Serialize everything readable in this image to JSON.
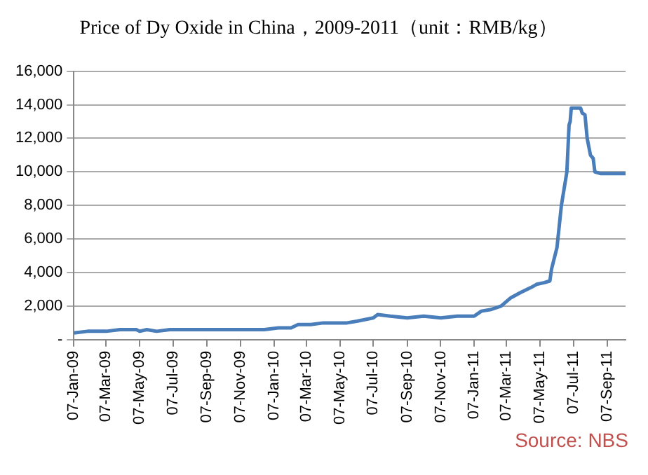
{
  "chart_data": {
    "type": "line",
    "title": "Price of Dy Oxide in China，2009-2011（unit：RMB/kg）",
    "x": [
      "2009-01-07",
      "2009-02-01",
      "2009-03-07",
      "2009-04-01",
      "2009-05-01",
      "2009-05-07",
      "2009-05-20",
      "2009-06-07",
      "2009-07-01",
      "2009-09-01",
      "2009-11-07",
      "2009-12-20",
      "2010-01-15",
      "2010-02-07",
      "2010-02-20",
      "2010-03-15",
      "2010-04-07",
      "2010-05-07",
      "2010-05-20",
      "2010-06-07",
      "2010-07-07",
      "2010-07-15",
      "2010-08-07",
      "2010-09-07",
      "2010-10-07",
      "2010-11-07",
      "2010-12-07",
      "2011-01-07",
      "2011-01-20",
      "2011-02-07",
      "2011-02-25",
      "2011-03-15",
      "2011-04-01",
      "2011-04-20",
      "2011-05-01",
      "2011-05-15",
      "2011-05-25",
      "2011-05-28",
      "2011-06-07",
      "2011-06-15",
      "2011-06-25",
      "2011-06-29",
      "2011-07-01",
      "2011-07-03",
      "2011-07-20",
      "2011-07-23",
      "2011-07-28",
      "2011-08-01",
      "2011-08-07",
      "2011-08-12",
      "2011-08-15",
      "2011-08-25",
      "2011-10-10"
    ],
    "series": [
      {
        "color": "#4a7ebb",
        "values": [
          400,
          500,
          500,
          600,
          600,
          500,
          600,
          500,
          600,
          600,
          600,
          600,
          700,
          700,
          900,
          900,
          1000,
          1000,
          1000,
          1100,
          1300,
          1500,
          1400,
          1300,
          1400,
          1300,
          1400,
          1400,
          1700,
          1800,
          2000,
          2500,
          2800,
          3100,
          3300,
          3400,
          3500,
          4200,
          5500,
          8000,
          10000,
          12800,
          13000,
          13800,
          13800,
          13500,
          13400,
          12000,
          11000,
          10800,
          10000,
          9900,
          9900
        ]
      }
    ],
    "xlim": [
      "2009-01-07",
      "2011-10-10"
    ],
    "xticks": [
      {
        "value": "2009-01-07",
        "label": "07-Jan-09"
      },
      {
        "value": "2009-03-07",
        "label": "07-Mar-09"
      },
      {
        "value": "2009-05-07",
        "label": "07-May-09"
      },
      {
        "value": "2009-07-07",
        "label": "07-Jul-09"
      },
      {
        "value": "2009-09-07",
        "label": "07-Sep-09"
      },
      {
        "value": "2009-11-07",
        "label": "07-Nov-09"
      },
      {
        "value": "2010-01-07",
        "label": "07-Jan-10"
      },
      {
        "value": "2010-03-07",
        "label": "07-Mar-10"
      },
      {
        "value": "2010-05-07",
        "label": "07-May-10"
      },
      {
        "value": "2010-07-07",
        "label": "07-Jul-10"
      },
      {
        "value": "2010-09-07",
        "label": "07-Sep-10"
      },
      {
        "value": "2010-11-07",
        "label": "07-Nov-10"
      },
      {
        "value": "2011-01-07",
        "label": "07-Jan-11"
      },
      {
        "value": "2011-03-07",
        "label": "07-Mar-11"
      },
      {
        "value": "2011-05-07",
        "label": "07-May-11"
      },
      {
        "value": "2011-07-07",
        "label": "07-Jul-11"
      },
      {
        "value": "2011-09-07",
        "label": "07-Sep-11"
      }
    ],
    "ylim": [
      0,
      16000
    ],
    "yticks": [
      {
        "value": 0,
        "label": "-"
      },
      {
        "value": 2000,
        "label": "2,000"
      },
      {
        "value": 4000,
        "label": "4,000"
      },
      {
        "value": 6000,
        "label": "6,000"
      },
      {
        "value": 8000,
        "label": "8,000"
      },
      {
        "value": 10000,
        "label": "10,000"
      },
      {
        "value": 12000,
        "label": "12,000"
      },
      {
        "value": 14000,
        "label": "14,000"
      },
      {
        "value": 16000,
        "label": "16,000"
      }
    ],
    "grid": "y",
    "marker": "none",
    "line_style": "solid",
    "annotations": [
      "Source: NBS"
    ]
  }
}
